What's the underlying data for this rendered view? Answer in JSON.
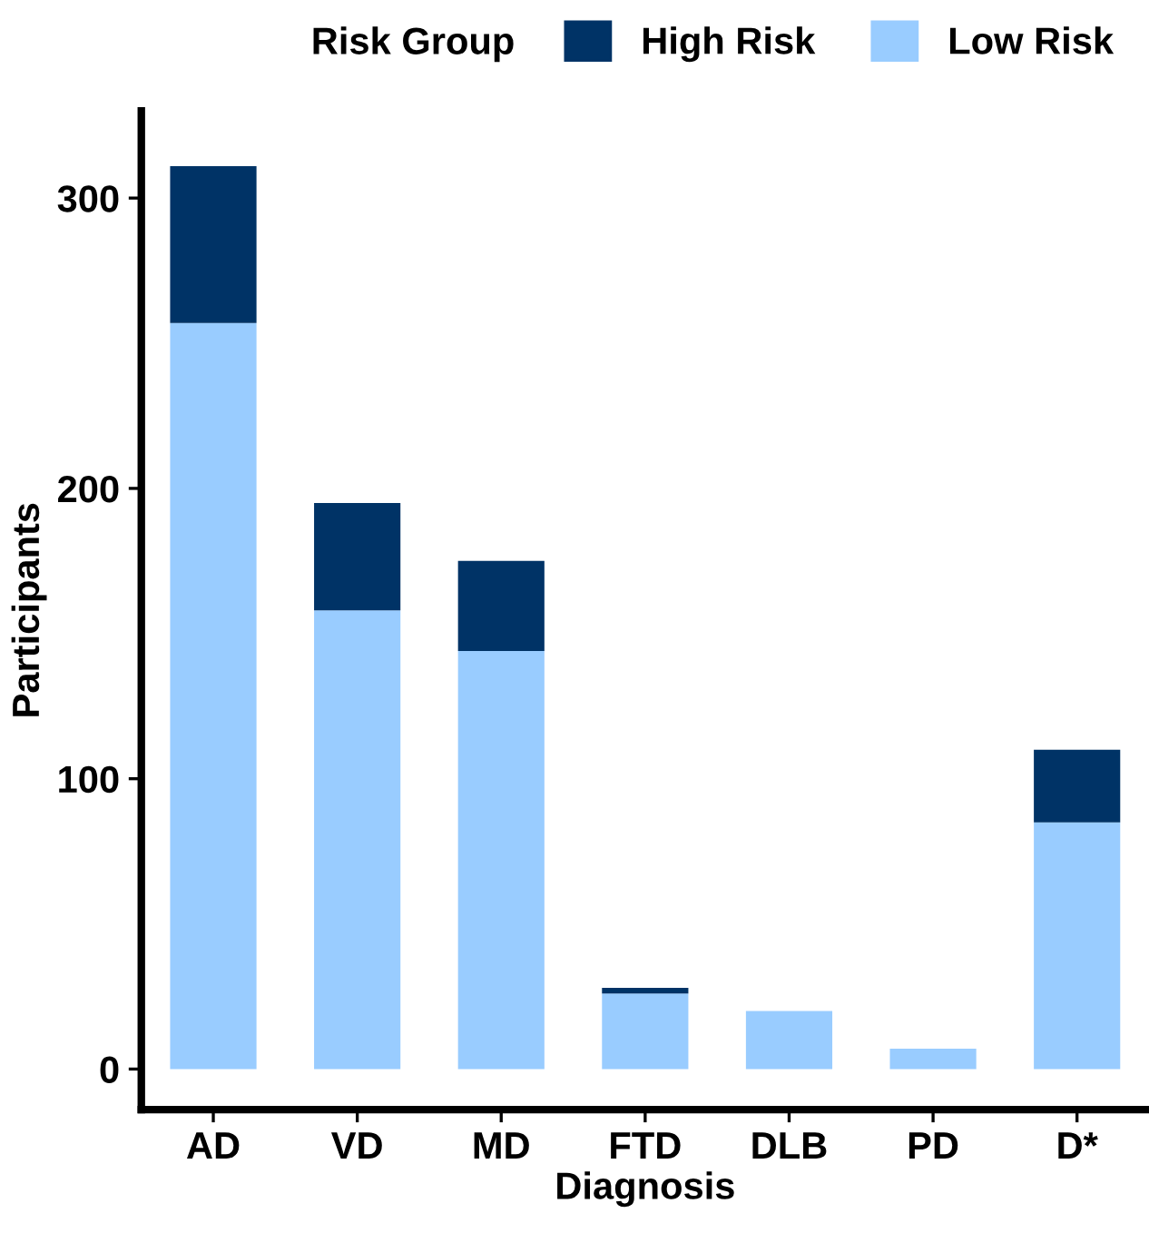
{
  "chart_data": {
    "type": "bar",
    "stacked": true,
    "xlabel": "Diagnosis",
    "ylabel": "Participants",
    "legend_title": "Risk Group",
    "legend": "top",
    "categories": [
      "AD",
      "VD",
      "MD",
      "FTD",
      "DLB",
      "PD",
      "D*"
    ],
    "series": [
      {
        "name": "Low Risk",
        "color": "#99ccff",
        "values": [
          257,
          158,
          144,
          26,
          20,
          7,
          85
        ]
      },
      {
        "name": "High Risk",
        "color": "#003366",
        "values": [
          54,
          37,
          31,
          2,
          0,
          0,
          25
        ]
      }
    ],
    "ylim": [
      -14,
      330
    ],
    "yticks": [
      0,
      100,
      200,
      300
    ],
    "grid": false
  }
}
